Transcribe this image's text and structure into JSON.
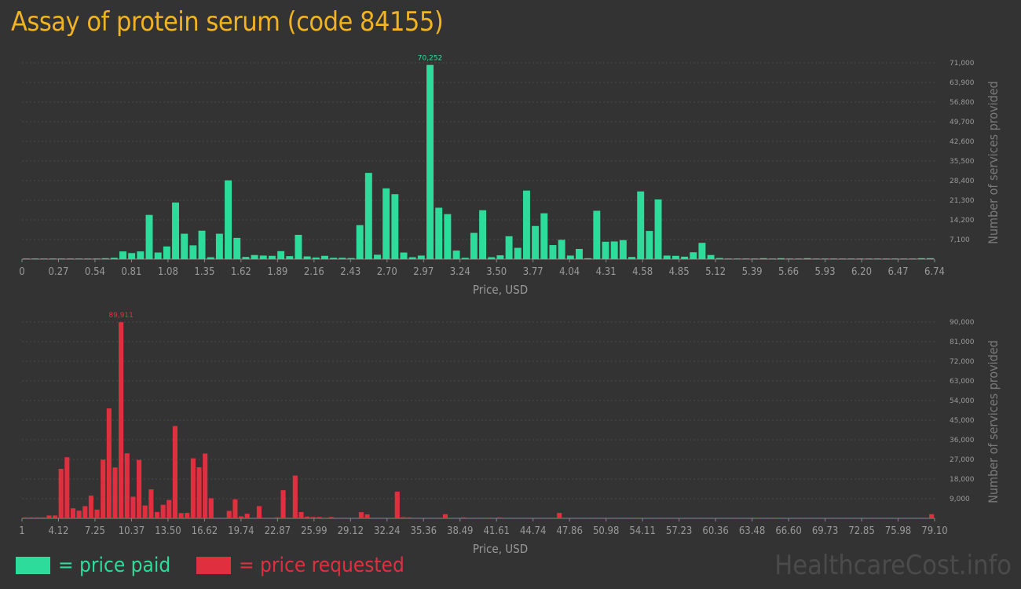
{
  "title": "Assay of protein serum (code 84155)",
  "colors": {
    "paid": "#2ddc9a",
    "requested": "#e0303f",
    "title": "#f2b320",
    "axis": "#999999",
    "grid": "#4a4a4a"
  },
  "legend": {
    "paid": "= price paid",
    "requested": "= price requested"
  },
  "watermark": "HealthcareCost.info",
  "chart_data": [
    {
      "type": "bar",
      "series": [
        {
          "name": "price paid",
          "values": [
            0,
            0,
            0,
            0,
            0,
            0,
            0,
            0,
            0,
            300,
            500,
            2800,
            2200,
            2800,
            16000,
            2400,
            4600,
            20500,
            9200,
            5000,
            10300,
            700,
            9200,
            28500,
            7700,
            800,
            1500,
            1300,
            1200,
            2900,
            1100,
            8800,
            1000,
            600,
            1200,
            500,
            500,
            400,
            12300,
            31200,
            1600,
            25600,
            23500,
            2400,
            700,
            1300,
            70252,
            18600,
            16300,
            3100,
            500,
            9500,
            17700,
            700,
            1400,
            8300,
            4100,
            24800,
            12000,
            16600,
            5100,
            7000,
            1300,
            3700,
            200,
            17500,
            6300,
            6400,
            6900,
            800,
            24500,
            10200,
            21600,
            1300,
            1200,
            900,
            2500,
            5900,
            1500,
            400,
            0,
            0,
            0,
            0,
            200,
            0,
            300,
            0,
            0,
            200,
            0,
            0,
            0,
            0,
            0,
            0,
            0,
            0,
            0,
            0,
            0,
            0,
            200,
            200
          ]
        }
      ],
      "x_ticks": [
        "0",
        "0.27",
        "0.54",
        "0.81",
        "1.08",
        "1.35",
        "1.62",
        "1.89",
        "2.16",
        "2.43",
        "2.70",
        "2.97",
        "3.24",
        "3.50",
        "3.77",
        "4.04",
        "4.31",
        "4.58",
        "4.85",
        "5.12",
        "5.39",
        "5.66",
        "5.93",
        "6.20",
        "6.47",
        "6.74"
      ],
      "y_ticks": [
        "7,100",
        "14,200",
        "21,300",
        "28,400",
        "35,500",
        "42,600",
        "49,700",
        "56,800",
        "63,900",
        "71,000"
      ],
      "y_max": 71000,
      "xlabel": "Price, USD",
      "ylabel": "Number of services provided",
      "peak_label": "70,252"
    },
    {
      "type": "bar",
      "series": [
        {
          "name": "price requested",
          "values": [
            300,
            300,
            300,
            300,
            1300,
            1300,
            22700,
            28000,
            4600,
            3500,
            5600,
            10400,
            4000,
            26900,
            50400,
            23300,
            89911,
            29800,
            9900,
            26800,
            5900,
            13300,
            2900,
            6200,
            8400,
            42300,
            2400,
            2500,
            27500,
            23400,
            29700,
            9200,
            0,
            0,
            3400,
            8700,
            900,
            2100,
            0,
            5600,
            0,
            0,
            300,
            12900,
            0,
            19600,
            2900,
            800,
            600,
            600,
            0,
            600,
            0,
            0,
            0,
            0,
            2800,
            1800,
            0,
            0,
            0,
            0,
            12200,
            500,
            200,
            0,
            0,
            0,
            0,
            0,
            1900,
            0,
            0,
            300,
            0,
            0,
            0,
            0,
            0,
            200,
            0,
            0,
            0,
            0,
            0,
            0,
            0,
            0,
            0,
            2500,
            0,
            0,
            0,
            0,
            0,
            0,
            0,
            0,
            0,
            0,
            0,
            0,
            0,
            0,
            0,
            0,
            0,
            0,
            0,
            0,
            0,
            0,
            0,
            0,
            0,
            0,
            0,
            0,
            0,
            0,
            0,
            0,
            0,
            0,
            0,
            0,
            0,
            0,
            0,
            0,
            0,
            0,
            0,
            0,
            0,
            0,
            0,
            0,
            0,
            0,
            0,
            0,
            0,
            0,
            0,
            0,
            0,
            0,
            0,
            0,
            0,
            1900
          ]
        }
      ],
      "x_ticks": [
        "1",
        "4.12",
        "7.25",
        "10.37",
        "13.50",
        "16.62",
        "19.74",
        "22.87",
        "25.99",
        "29.12",
        "32.24",
        "35.36",
        "38.49",
        "41.61",
        "44.74",
        "47.86",
        "50.98",
        "54.11",
        "57.23",
        "60.36",
        "63.48",
        "66.60",
        "69.73",
        "72.85",
        "75.98",
        "79.10"
      ],
      "y_ticks": [
        "9,000",
        "18,000",
        "27,000",
        "36,000",
        "45,000",
        "54,000",
        "63,000",
        "72,000",
        "81,000",
        "90,000"
      ],
      "y_max": 90000,
      "xlabel": "Price, USD",
      "ylabel": "Number of services provided",
      "peak_label": "89,911"
    }
  ]
}
